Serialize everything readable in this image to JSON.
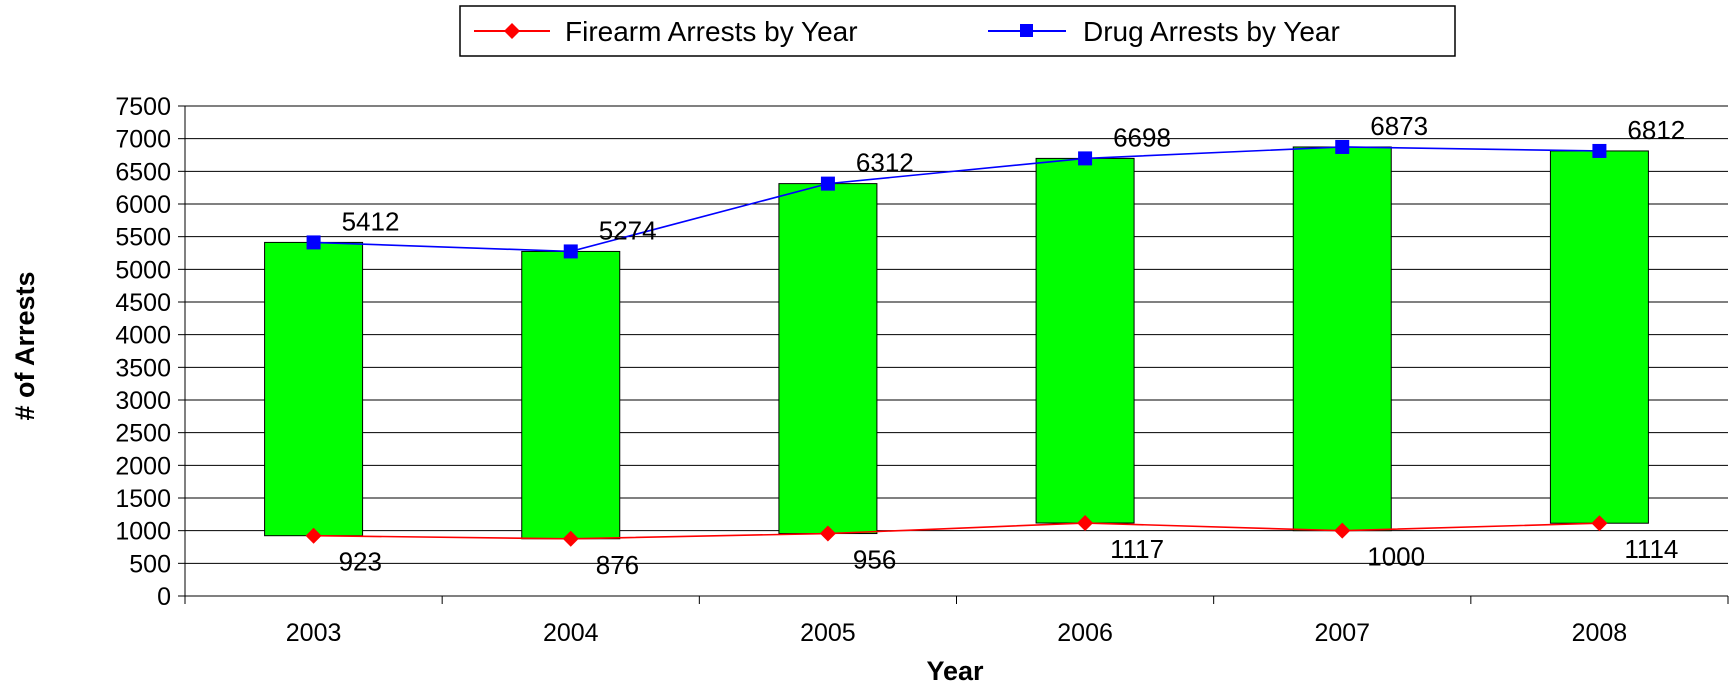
{
  "chart_data": {
    "type": "line",
    "categories": [
      "2003",
      "2004",
      "2005",
      "2006",
      "2007",
      "2008"
    ],
    "series": [
      {
        "name": "Firearm Arrests by Year",
        "values": [
          923,
          876,
          956,
          1117,
          1000,
          1114
        ],
        "color": "#ff0000",
        "marker": "diamond"
      },
      {
        "name": "Drug Arrests by Year",
        "values": [
          5412,
          5274,
          6312,
          6698,
          6873,
          6812
        ],
        "color": "#0000ff",
        "marker": "square"
      }
    ],
    "range_bars": {
      "color": "#00ff00",
      "from_series": "Firearm Arrests by Year",
      "to_series": "Drug Arrests by Year"
    },
    "xlabel": "Year",
    "ylabel": "# of Arrests",
    "ylim": [
      0,
      7500
    ],
    "yticks": [
      0,
      500,
      1000,
      1500,
      2000,
      2500,
      3000,
      3500,
      4000,
      4500,
      5000,
      5500,
      6000,
      6500,
      7000,
      7500
    ],
    "grid": true,
    "legend_position": "top-center"
  }
}
